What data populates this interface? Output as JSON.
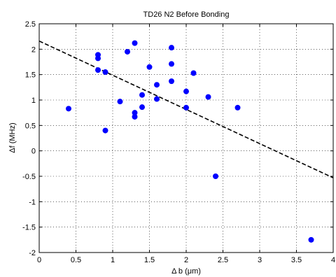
{
  "chart_data": {
    "type": "scatter",
    "title": "TD26 N2 Before Bonding",
    "xlabel": "Δ b (μm)",
    "ylabel": "Δf (MHz)",
    "xlim": [
      0,
      4
    ],
    "ylim": [
      -2,
      2.5
    ],
    "x_ticks": [
      0,
      0.5,
      1,
      1.5,
      2,
      2.5,
      3,
      3.5,
      4
    ],
    "y_ticks": [
      -2,
      -1.5,
      -1,
      -0.5,
      0,
      0.5,
      1,
      1.5,
      2,
      2.5
    ],
    "grid": true,
    "grid_style": "dotted",
    "marker_color": "#0000ff",
    "fit_line_color": "#000000",
    "series": [
      {
        "points": [
          [
            0.4,
            0.83
          ],
          [
            0.8,
            1.89
          ],
          [
            0.8,
            1.82
          ],
          [
            0.8,
            1.59
          ],
          [
            0.9,
            1.55
          ],
          [
            0.9,
            0.4
          ],
          [
            1.1,
            0.97
          ],
          [
            1.2,
            1.95
          ],
          [
            1.3,
            2.12
          ],
          [
            1.3,
            0.75
          ],
          [
            1.3,
            0.67
          ],
          [
            1.4,
            1.1
          ],
          [
            1.4,
            0.86
          ],
          [
            1.5,
            1.65
          ],
          [
            1.6,
            1.3
          ],
          [
            1.6,
            1.02
          ],
          [
            1.8,
            2.03
          ],
          [
            1.8,
            1.71
          ],
          [
            1.8,
            1.37
          ],
          [
            2.0,
            1.17
          ],
          [
            2.0,
            0.85
          ],
          [
            2.1,
            1.53
          ],
          [
            2.3,
            1.06
          ],
          [
            2.4,
            -0.5
          ],
          [
            2.7,
            0.85
          ],
          [
            3.7,
            -1.75
          ]
        ]
      }
    ],
    "fit_line": {
      "x": [
        0,
        4
      ],
      "y": [
        2.16,
        -0.53
      ]
    }
  }
}
